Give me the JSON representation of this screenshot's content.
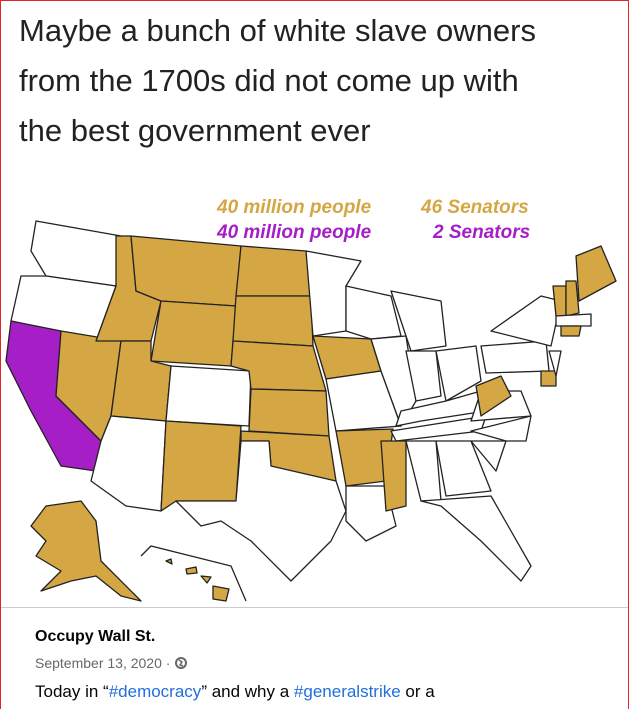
{
  "meme": {
    "caption_lines": [
      "Maybe a bunch of white slave owners",
      "from the 1700s did not come up with",
      "the best government ever"
    ],
    "legend": [
      [
        "40 million people",
        "46 Senators"
      ],
      [
        "40 million people",
        "2 Senators"
      ]
    ]
  },
  "post": {
    "author": "Occupy Wall St.",
    "date": "September 13, 2020 ·",
    "text_parts": [
      "Today in “",
      "#democracy",
      "” and why a ",
      "#generalstrike",
      " or a"
    ]
  }
}
